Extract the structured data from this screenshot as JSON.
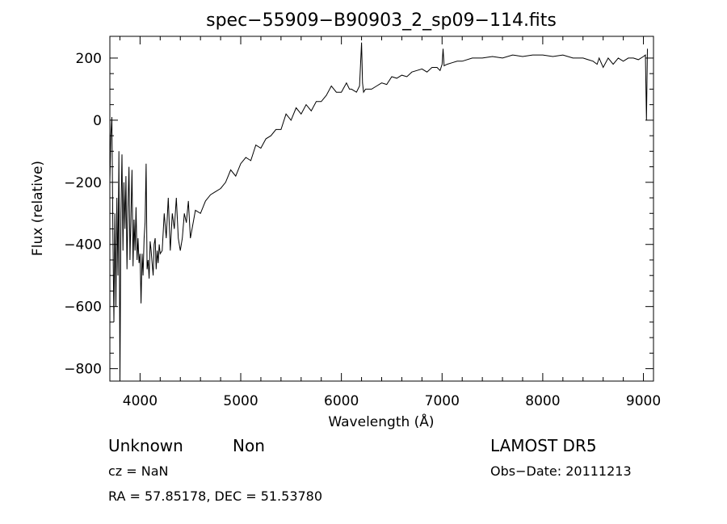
{
  "chart_data": {
    "type": "line",
    "title": "spec−55909−B90903_2_sp09−114.fits",
    "xlabel": "Wavelength (Å)",
    "ylabel": "Flux (relative)",
    "xlim": [
      3700,
      9100
    ],
    "ylim": [
      -840,
      270
    ],
    "x_ticks": [
      4000,
      5000,
      6000,
      7000,
      8000,
      9000
    ],
    "y_ticks": [
      200,
      0,
      -200,
      -400,
      -600,
      -800
    ],
    "grid": false,
    "series": [
      {
        "x": [
          3700,
          3710,
          3720,
          3730,
          3740,
          3750,
          3760,
          3770,
          3780,
          3790,
          3800,
          3810,
          3820,
          3830,
          3840,
          3850,
          3860,
          3870,
          3880,
          3890,
          3900,
          3910,
          3920,
          3930,
          3940,
          3950,
          3960,
          3970,
          3980,
          3990,
          4000,
          4010,
          4020,
          4030,
          4040,
          4050,
          4060,
          4070,
          4080,
          4090,
          4100,
          4110,
          4120,
          4130,
          4140,
          4150,
          4160,
          4170,
          4180,
          4190,
          4200,
          4220,
          4240,
          4260,
          4280,
          4300,
          4320,
          4340,
          4360,
          4380,
          4400,
          4420,
          4440,
          4460,
          4480,
          4500,
          4550,
          4600,
          4650,
          4700,
          4750,
          4800,
          4850,
          4900,
          4950,
          5000,
          5050,
          5100,
          5150,
          5200,
          5250,
          5300,
          5350,
          5400,
          5450,
          5500,
          5550,
          5600,
          5650,
          5700,
          5750,
          5800,
          5850,
          5900,
          5950,
          6000,
          6050,
          6080,
          6100,
          6150,
          6180,
          6200,
          6210,
          6220,
          6240,
          6300,
          6350,
          6400,
          6450,
          6500,
          6550,
          6600,
          6650,
          6700,
          6750,
          6800,
          6850,
          6900,
          6950,
          6980,
          7000,
          7010,
          7020,
          7050,
          7100,
          7150,
          7200,
          7300,
          7400,
          7500,
          7600,
          7700,
          7800,
          7900,
          8000,
          8100,
          8200,
          8300,
          8400,
          8450,
          8500,
          8540,
          8560,
          8600,
          8650,
          8700,
          8750,
          8800,
          8850,
          8900,
          8950,
          9000,
          9020,
          9030,
          9040
        ],
        "y": [
          -200,
          -50,
          10,
          -350,
          -650,
          -300,
          -600,
          -250,
          -500,
          -100,
          -840,
          -300,
          -110,
          -420,
          -200,
          -350,
          -180,
          -480,
          -280,
          -150,
          -450,
          -300,
          -160,
          -470,
          -320,
          -420,
          -280,
          -450,
          -380,
          -460,
          -430,
          -590,
          -430,
          -500,
          -380,
          -330,
          -140,
          -480,
          -450,
          -510,
          -390,
          -420,
          -460,
          -500,
          -400,
          -380,
          -480,
          -420,
          -460,
          -400,
          -430,
          -420,
          -300,
          -380,
          -250,
          -420,
          -300,
          -350,
          -250,
          -380,
          -420,
          -380,
          -300,
          -330,
          -260,
          -380,
          -290,
          -300,
          -260,
          -240,
          -230,
          -220,
          -200,
          -160,
          -180,
          -140,
          -120,
          -130,
          -80,
          -90,
          -60,
          -50,
          -30,
          -30,
          20,
          0,
          40,
          20,
          50,
          30,
          60,
          60,
          80,
          110,
          90,
          90,
          120,
          100,
          100,
          90,
          110,
          250,
          120,
          90,
          100,
          100,
          110,
          120,
          115,
          140,
          135,
          145,
          140,
          155,
          160,
          165,
          155,
          170,
          170,
          160,
          180,
          230,
          175,
          180,
          185,
          190,
          190,
          200,
          200,
          205,
          200,
          210,
          205,
          210,
          210,
          205,
          210,
          200,
          200,
          195,
          190,
          180,
          200,
          170,
          200,
          180,
          200,
          190,
          200,
          200,
          195,
          205,
          210,
          0,
          230
        ]
      }
    ]
  },
  "footer": {
    "object_class": "Unknown",
    "object_subclass": "Non",
    "survey": "LAMOST DR5",
    "redshift": "cz = NaN",
    "obs_date": "Obs−Date: 20111213",
    "coords": "RA =  57.85178, DEC =  51.53780"
  }
}
